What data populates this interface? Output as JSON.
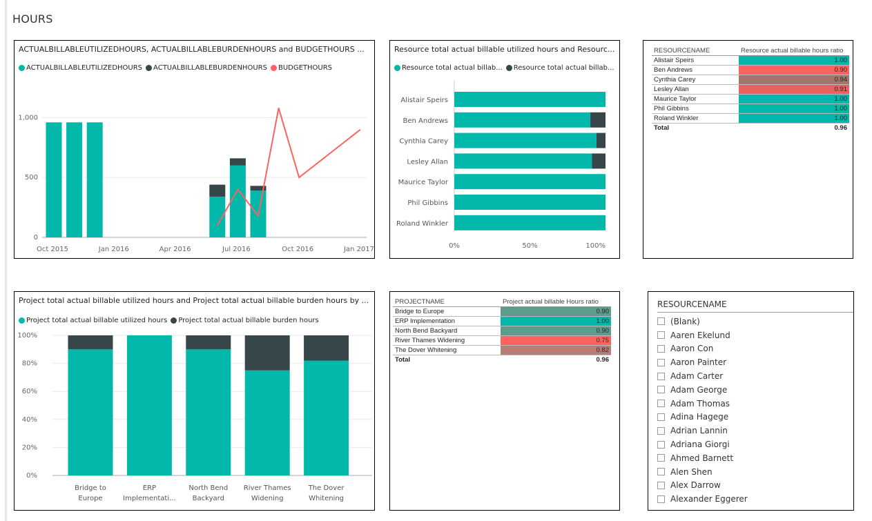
{
  "page_title": "HOURS",
  "colors": {
    "teal": "#01b8aa",
    "dark": "#374649",
    "red": "#fd625e"
  },
  "combo": {
    "title": "ACTUALBILLABLEUTILIZEDHOURS, ACTUALBILLABLEBURDENHOURS and BUDGETHOURS ...",
    "legend": [
      "ACTUALBILLABLEUTILIZEDHOURS",
      "ACTUALBILLABLEBURDENHOURS",
      "BUDGETHOURS"
    ],
    "y_ticks": [
      "1,000",
      "500",
      "0"
    ],
    "x_ticks": [
      "Oct 2015",
      "Jan 2016",
      "Apr 2016",
      "Jul 2016",
      "Oct 2016",
      "Jan 2017"
    ]
  },
  "chart_data": [
    {
      "type": "bar",
      "title": "ACTUALBILLABLEUTILIZEDHOURS, ACTUALBILLABLEBURDENHOURS and BUDGETHOURS ...",
      "categories": [
        "Oct 2015",
        "Nov 2015",
        "Dec 2015",
        "Jun 2016",
        "Jul 2016",
        "Aug 2016"
      ],
      "series": [
        {
          "name": "ACTUALBILLABLEUTILIZEDHOURS",
          "values": [
            960,
            960,
            960,
            340,
            600,
            390
          ]
        },
        {
          "name": "ACTUALBILLABLEBURDENHOURS",
          "values": [
            0,
            0,
            0,
            100,
            60,
            40
          ]
        }
      ],
      "line_series": {
        "name": "BUDGETHOURS",
        "points": [
          [
            "Jun 2016",
            100
          ],
          [
            "Jul 2016",
            400
          ],
          [
            "Aug 2016",
            180
          ],
          [
            "Sep 2016",
            1080
          ],
          [
            "Oct 2016",
            500
          ],
          [
            "Jan 2017",
            900
          ]
        ]
      },
      "ylim": [
        0,
        1100
      ],
      "xlabel": "",
      "ylabel": ""
    },
    {
      "type": "bar",
      "title": "Resource total actual billable utilized hours and Resourc...",
      "orientation": "horizontal-stacked-100",
      "categories": [
        "Alistair Speirs",
        "Ben Andrews",
        "Cynthia Carey",
        "Lesley Allan",
        "Maurice Taylor",
        "Phil Gibbins",
        "Roland Winkler"
      ],
      "series": [
        {
          "name": "Resource total actual billab...",
          "values": [
            100,
            90,
            94,
            91,
            100,
            100,
            100
          ]
        },
        {
          "name": "Resource total actual billab...",
          "values": [
            0,
            10,
            6,
            9,
            0,
            0,
            0
          ]
        }
      ],
      "xticks": [
        "0%",
        "50%",
        "100%"
      ],
      "xlim": [
        0,
        100
      ]
    },
    {
      "type": "bar",
      "title": "Project total actual billable utilized hours and Project total actual billable burden hours by ...",
      "orientation": "vertical-stacked-100",
      "categories": [
        "Bridge to Europe",
        "ERP Implementati...",
        "North Bend Backyard",
        "River Thames Widening",
        "The Dover Whitening"
      ],
      "category_lines": [
        [
          "Bridge to",
          "Europe"
        ],
        [
          "ERP",
          "Implementati..."
        ],
        [
          "North Bend",
          "Backyard"
        ],
        [
          "River Thames",
          "Widening"
        ],
        [
          "The Dover",
          "Whitening"
        ]
      ],
      "series": [
        {
          "name": "Project total actual billable utilized hours",
          "values": [
            90,
            100,
            90,
            75,
            82
          ]
        },
        {
          "name": "Project total actual billable burden hours",
          "values": [
            10,
            0,
            10,
            25,
            18
          ]
        }
      ],
      "yticks": [
        "100%",
        "80%",
        "60%",
        "40%",
        "20%",
        "0%"
      ],
      "ylim": [
        0,
        100
      ]
    }
  ],
  "resource_bar": {
    "title": "Resource total actual billable utilized hours and Resourc...",
    "legend": [
      "Resource total actual billab...",
      "Resource total actual billab..."
    ]
  },
  "project_bar": {
    "title": "Project total actual billable utilized hours and Project total actual billable burden hours by ...",
    "legend": [
      "Project total actual billable utilized hours",
      "Project total actual billable burden hours"
    ]
  },
  "resource_table": {
    "headers": [
      "RESOURCENAME",
      "Resource actual billable hours ratio"
    ],
    "rows": [
      {
        "name": "Alistair Speirs",
        "value": "1.00",
        "color": "#01b8aa"
      },
      {
        "name": "Ben Andrews",
        "value": "0.90",
        "color": "#fd625e"
      },
      {
        "name": "Cynthia Carey",
        "value": "0.94",
        "color": "#a1766d"
      },
      {
        "name": "Lesley Allan",
        "value": "0.91",
        "color": "#e8635d"
      },
      {
        "name": "Maurice Taylor",
        "value": "1.00",
        "color": "#01b8aa"
      },
      {
        "name": "Phil Gibbins",
        "value": "1.00",
        "color": "#01b8aa"
      },
      {
        "name": "Roland Winkler",
        "value": "1.00",
        "color": "#01b8aa"
      }
    ],
    "total_label": "Total",
    "total_value": "0.96"
  },
  "project_table": {
    "headers": [
      "PROJECTNAME",
      "Project actual billable Hours ratio"
    ],
    "rows": [
      {
        "name": "Bridge to Europe",
        "value": "0.90",
        "color": "#5d9b8d"
      },
      {
        "name": "ERP Implementation",
        "value": "1.00",
        "color": "#01b8aa"
      },
      {
        "name": "North Bend Backyard",
        "value": "0.90",
        "color": "#5d9b8d"
      },
      {
        "name": "River Thames Widening",
        "value": "0.75",
        "color": "#fd625e"
      },
      {
        "name": "The Dover Whitening",
        "value": "0.82",
        "color": "#b87d76"
      }
    ],
    "total_label": "Total",
    "total_value": "0.96"
  },
  "slicer": {
    "header": "RESOURCENAME",
    "items": [
      "(Blank)",
      "Aaren Ekelund",
      "Aaron Con",
      "Aaron Painter",
      "Adam Carter",
      "Adam George",
      "Adam Thomas",
      "Adina Hagege",
      "Adrian Lannin",
      "Adriana Giorgi",
      "Ahmed Barnett",
      "Alen Shen",
      "Alex Darrow",
      "Alexander Eggerer"
    ]
  }
}
